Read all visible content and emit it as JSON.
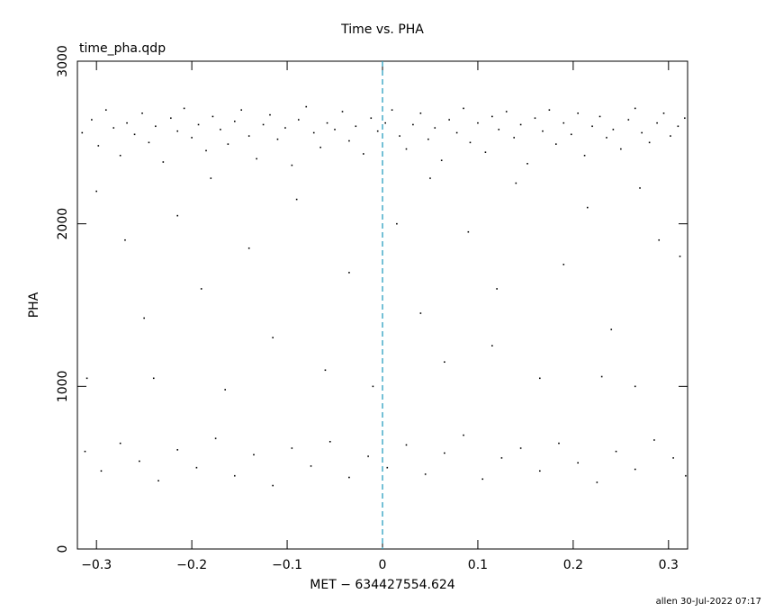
{
  "chart_data": {
    "type": "scatter",
    "title": "Time vs. PHA",
    "subtitle": "time_pha.qdp",
    "xlabel": "MET − 634427554.624",
    "ylabel": "PHA",
    "footer": "allen 30-Jul-2022 07:17",
    "color": "#000000",
    "grid": false,
    "vline": {
      "x": 0,
      "color": "#2a9fbf"
    },
    "xlim": [
      -0.32,
      0.32
    ],
    "ylim": [
      0,
      3000
    ],
    "xticks": [
      {
        "value": -0.3,
        "label": "−0.3"
      },
      {
        "value": -0.2,
        "label": "−0.2"
      },
      {
        "value": -0.1,
        "label": "−0.1"
      },
      0,
      0.1,
      0.2,
      0.3
    ],
    "yticks": [
      0,
      1000,
      2000,
      3000
    ],
    "x": [
      -0.315,
      -0.305,
      -0.298,
      -0.29,
      -0.282,
      -0.275,
      -0.268,
      -0.26,
      -0.252,
      -0.245,
      -0.238,
      -0.23,
      -0.222,
      -0.215,
      -0.208,
      -0.2,
      -0.193,
      -0.185,
      -0.178,
      -0.17,
      -0.162,
      -0.155,
      -0.148,
      -0.14,
      -0.132,
      -0.125,
      -0.118,
      -0.11,
      -0.102,
      -0.095,
      -0.088,
      -0.08,
      -0.072,
      -0.065,
      -0.058,
      -0.05,
      -0.042,
      -0.035,
      -0.028,
      -0.02,
      -0.012,
      -0.005,
      0.003,
      0.01,
      0.018,
      0.025,
      0.032,
      0.04,
      0.048,
      0.055,
      0.062,
      0.07,
      0.078,
      0.085,
      0.092,
      0.1,
      0.108,
      0.115,
      0.122,
      0.13,
      0.138,
      0.145,
      0.152,
      0.16,
      0.168,
      0.175,
      0.182,
      0.19,
      0.198,
      0.205,
      0.212,
      0.22,
      0.228,
      0.235,
      0.242,
      0.25,
      0.258,
      0.265,
      0.272,
      0.28,
      0.288,
      0.295,
      0.302,
      0.31,
      0.317,
      -0.3,
      -0.27,
      -0.24,
      -0.215,
      -0.19,
      -0.165,
      -0.14,
      -0.115,
      -0.09,
      -0.06,
      -0.035,
      -0.01,
      0.015,
      0.04,
      0.065,
      0.09,
      0.115,
      0.14,
      0.165,
      0.19,
      0.215,
      0.24,
      0.265,
      0.29,
      0.312,
      -0.31,
      -0.18,
      0.05,
      0.27,
      -0.25,
      0.12,
      0.23,
      -0.312,
      -0.295,
      -0.275,
      -0.255,
      -0.235,
      -0.215,
      -0.195,
      -0.175,
      -0.155,
      -0.135,
      -0.115,
      -0.095,
      -0.075,
      -0.055,
      -0.035,
      -0.015,
      0.005,
      0.025,
      0.045,
      0.065,
      0.085,
      0.105,
      0.125,
      0.145,
      0.165,
      0.185,
      0.205,
      0.225,
      0.245,
      0.265,
      0.285,
      0.305,
      0.318
    ],
    "values": [
      2560,
      2640,
      2480,
      2700,
      2590,
      2420,
      2620,
      2550,
      2680,
      2500,
      2600,
      2380,
      2650,
      2570,
      2710,
      2530,
      2610,
      2450,
      2660,
      2580,
      2490,
      2630,
      2700,
      2540,
      2400,
      2610,
      2670,
      2520,
      2590,
      2360,
      2640,
      2720,
      2560,
      2470,
      2620,
      2580,
      2690,
      2510,
      2600,
      2430,
      2650,
      2570,
      2620,
      2700,
      2540,
      2460,
      2610,
      2680,
      2520,
      2590,
      2390,
      2640,
      2560,
      2710,
      2500,
      2620,
      2440,
      2660,
      2580,
      2690,
      2530,
      2610,
      2370,
      2650,
      2570,
      2700,
      2490,
      2620,
      2550,
      2680,
      2420,
      2600,
      2660,
      2530,
      2580,
      2460,
      2640,
      2710,
      2560,
      2500,
      2620,
      2680,
      2540,
      2600,
      2650,
      2200,
      1900,
      1050,
      2050,
      1600,
      980,
      1850,
      1300,
      2150,
      1100,
      1700,
      1000,
      2000,
      1450,
      1150,
      1950,
      1250,
      2250,
      1050,
      1750,
      2100,
      1350,
      1000,
      1900,
      1800,
      1050,
      2280,
      2280,
      2220,
      1420,
      1600,
      1060,
      600,
      480,
      650,
      540,
      420,
      610,
      500,
      680,
      450,
      580,
      390,
      620,
      510,
      660,
      440,
      570,
      500,
      640,
      460,
      590,
      700,
      430,
      560,
      620,
      480,
      650,
      530,
      410,
      600,
      490,
      670,
      560,
      450
    ]
  }
}
